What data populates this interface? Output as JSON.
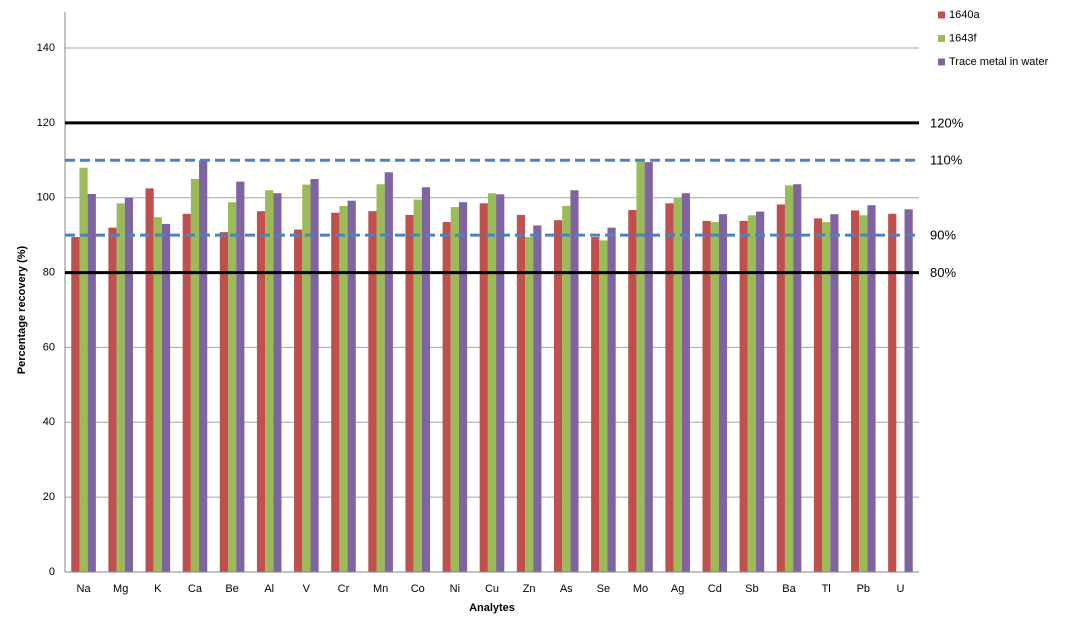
{
  "chart_data": {
    "type": "bar",
    "x_label": "Analytes",
    "y_label": "Percentage recovery (%)",
    "categories": [
      "Na",
      "Mg",
      "K",
      "Ca",
      "Be",
      "Al",
      "V",
      "Cr",
      "Mn",
      "Co",
      "Ni",
      "Cu",
      "Zn",
      "As",
      "Se",
      "Mo",
      "Ag",
      "Cd",
      "Sb",
      "Ba",
      "Tl",
      "Pb",
      "U"
    ],
    "series": [
      {
        "name": "1640a",
        "color": "#c0504d",
        "values": [
          89.5,
          92,
          102.5,
          95.7,
          90.8,
          96.4,
          91.5,
          96,
          96.4,
          95.4,
          93.5,
          98.5,
          95.4,
          94,
          89.5,
          96.7,
          98.5,
          93.8,
          93.8,
          98.2,
          94.5,
          96.6,
          95.7
        ]
      },
      {
        "name": "1643f",
        "color": "#9bbb59",
        "values": [
          108,
          98.5,
          94.8,
          105,
          98.8,
          102,
          103.5,
          97.8,
          103.6,
          99.5,
          97.5,
          101.2,
          89.5,
          97.8,
          88.6,
          109.8,
          100,
          93.5,
          95.3,
          103.3,
          93.5,
          95.3,
          null
        ]
      },
      {
        "name": "Trace metal in water",
        "color": "#8064a2",
        "values": [
          101,
          100,
          93,
          110,
          104.3,
          101.2,
          105,
          99.2,
          106.8,
          102.8,
          98.8,
          100.9,
          92.6,
          102,
          92,
          109.5,
          101.2,
          95.6,
          96.3,
          103.6,
          95.6,
          98,
          96.9
        ]
      }
    ],
    "reference_lines": [
      {
        "value": 120,
        "label": "120%",
        "color": "#000000",
        "style": "solid"
      },
      {
        "value": 110,
        "label": "110%",
        "color": "#4f81bd",
        "style": "dashed"
      },
      {
        "value": 90,
        "label": "90%",
        "color": "#4f81bd",
        "style": "dashed"
      },
      {
        "value": 80,
        "label": "80%",
        "color": "#000000",
        "style": "solid"
      }
    ],
    "ylim": [
      0,
      140
    ],
    "yticks": [
      0,
      20,
      40,
      60,
      80,
      100,
      120,
      140
    ],
    "grid": true,
    "legend": "top-right"
  }
}
